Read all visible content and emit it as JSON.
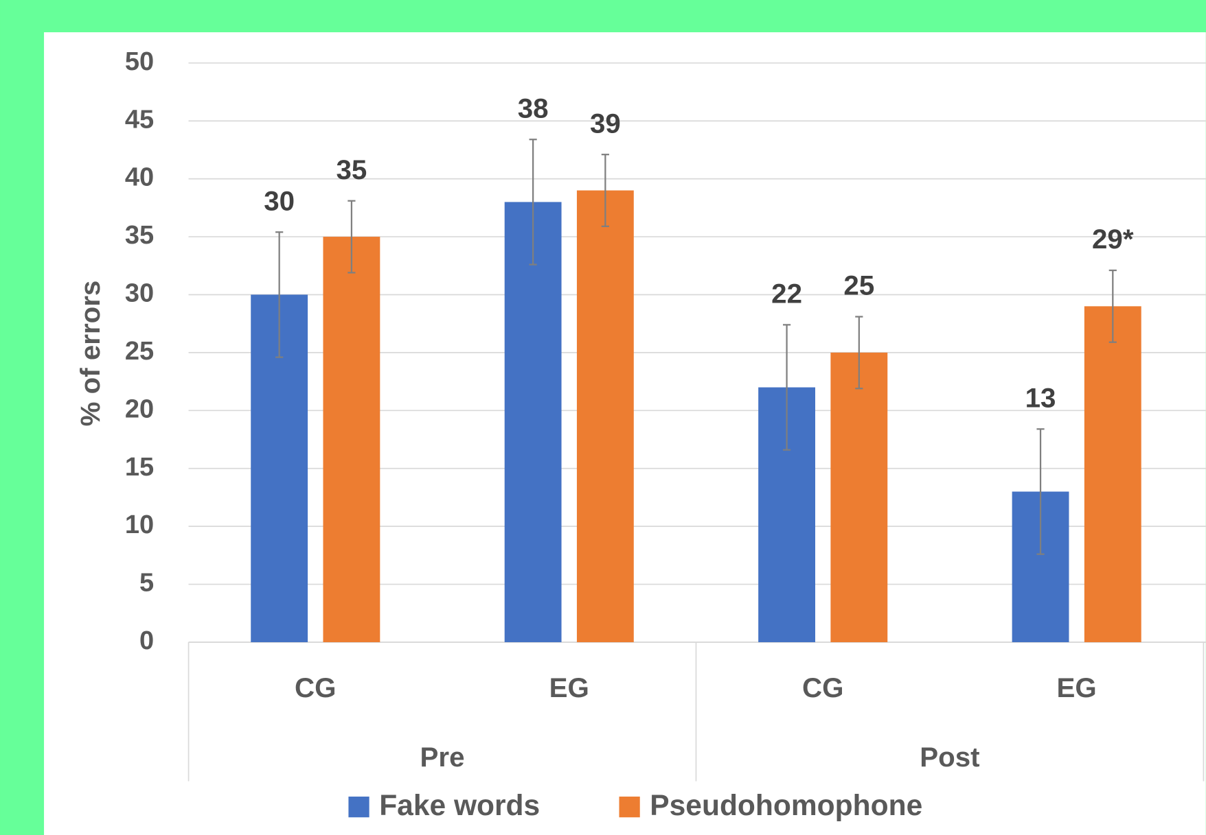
{
  "chart_data": {
    "type": "bar",
    "ylabel": "% of errors",
    "categories": [
      "CG",
      "EG",
      "CG",
      "EG"
    ],
    "groups": [
      "Pre",
      "Post"
    ],
    "series": [
      {
        "name": "Fake words",
        "color": "#4472c4",
        "values": [
          30,
          38,
          22,
          13
        ],
        "errors": [
          5.4,
          5.4,
          5.4,
          5.4
        ]
      },
      {
        "name": "Pseudohomophone",
        "color": "#ed7d31",
        "values": [
          35,
          39,
          25,
          29
        ],
        "errors": [
          3.1,
          3.1,
          3.1,
          3.1
        ],
        "value_labels": [
          "35",
          "39",
          "25",
          "29*"
        ]
      }
    ],
    "ylim": [
      0,
      50
    ],
    "yticks": [
      0,
      5,
      10,
      15,
      20,
      25,
      30,
      35,
      40,
      45,
      50
    ],
    "grid": true,
    "legend": "bottom"
  }
}
